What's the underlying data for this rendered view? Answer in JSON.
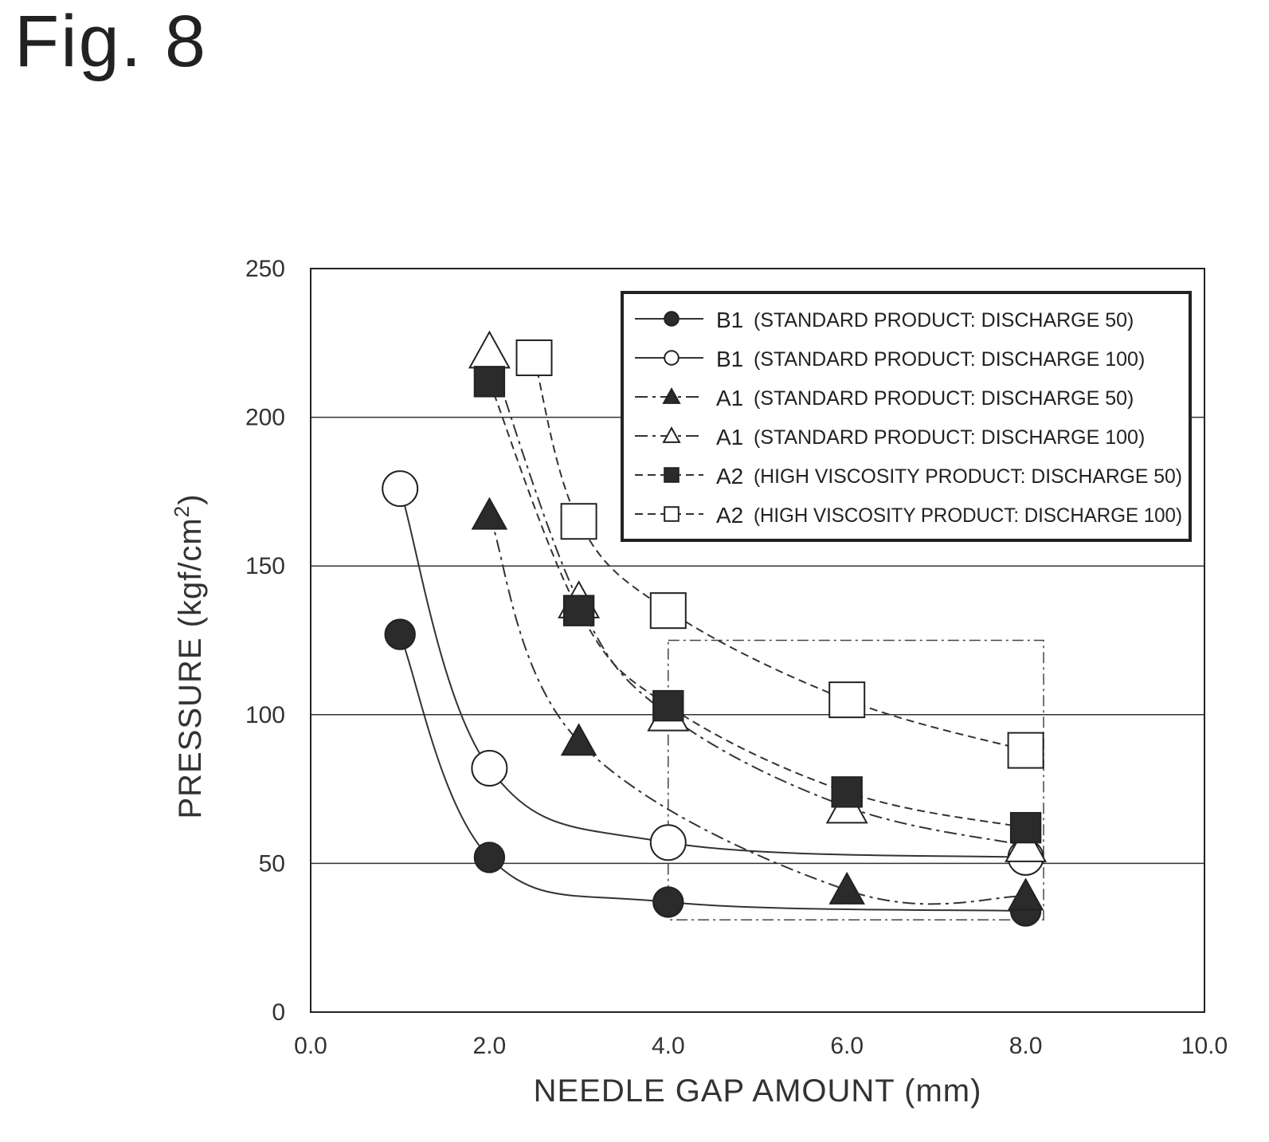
{
  "figure_label": "Fig. 8",
  "chart_data": {
    "type": "line",
    "title": "",
    "xlabel": "NEEDLE GAP AMOUNT (mm)",
    "ylabel_main": "PRESSURE (kgf/cm",
    "ylabel_sup": "2",
    "ylabel_end": ")",
    "xlim": [
      0,
      10
    ],
    "ylim": [
      0,
      250
    ],
    "xticks": [
      "0.0",
      "2.0",
      "4.0",
      "6.0",
      "8.0",
      "10.0"
    ],
    "xtick_values": [
      0,
      2,
      4,
      6,
      8,
      10
    ],
    "yticks": [
      "0",
      "50",
      "100",
      "150",
      "200",
      "250"
    ],
    "ytick_values": [
      0,
      50,
      100,
      150,
      200,
      250
    ],
    "grid": "horizontal",
    "legend_position": "top-right",
    "highlight_box": {
      "x": [
        4.0,
        8.2
      ],
      "y": [
        31,
        125
      ]
    },
    "series": [
      {
        "code": "B1",
        "name": "(STANDARD PRODUCT: DISCHARGE 50)",
        "marker": "circle",
        "filled": true,
        "dash": "solid",
        "x": [
          1,
          2,
          4,
          8
        ],
        "y": [
          127,
          52,
          37,
          34
        ]
      },
      {
        "code": "B1",
        "name": "(STANDARD PRODUCT: DISCHARGE 100)",
        "marker": "circle",
        "filled": false,
        "dash": "solid",
        "x": [
          1,
          2,
          4,
          8
        ],
        "y": [
          176,
          82,
          57,
          52
        ]
      },
      {
        "code": "A1",
        "name": "(STANDARD PRODUCT: DISCHARGE 50)",
        "marker": "triangle",
        "filled": true,
        "dash": "dashdot",
        "x": [
          2,
          3,
          6,
          8
        ],
        "y": [
          167,
          91,
          41,
          39
        ]
      },
      {
        "code": "A1",
        "name": "(STANDARD PRODUCT: DISCHARGE 100)",
        "marker": "triangle",
        "filled": false,
        "dash": "dashdot",
        "x": [
          2,
          3,
          4,
          6,
          8
        ],
        "y": [
          222,
          138,
          100,
          69,
          56
        ]
      },
      {
        "code": "A2",
        "name": "(HIGH VISCOSITY PRODUCT: DISCHARGE 50)",
        "marker": "square",
        "filled": true,
        "dash": "dashed",
        "x": [
          2,
          3,
          4,
          6,
          8
        ],
        "y": [
          212,
          135,
          103,
          74,
          62
        ]
      },
      {
        "code": "A2",
        "name": "(HIGH VISCOSITY PRODUCT: DISCHARGE 100)",
        "marker": "square",
        "filled": false,
        "dash": "dashed",
        "x": [
          2.5,
          3,
          4,
          6,
          8
        ],
        "y": [
          220,
          165,
          135,
          105,
          88
        ]
      }
    ]
  }
}
